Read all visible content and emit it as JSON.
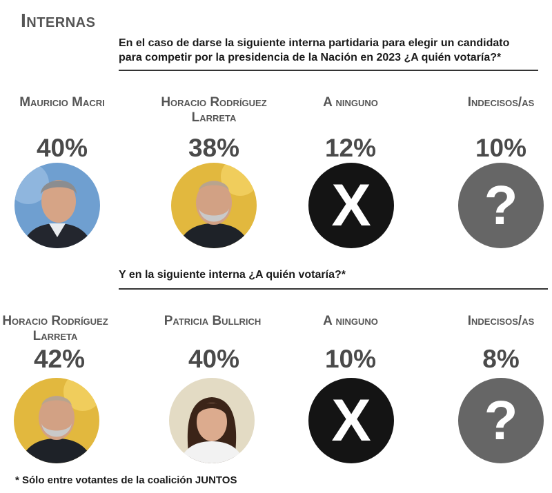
{
  "title": "Internas",
  "chart_data": [
    {
      "type": "table",
      "question": "En el caso de darse la siguiente interna partidaria para elegir un candidato para competir por la presidencia de la Nación en 2023 ¿A quién votaría?*",
      "categories": [
        "Mauricio Macri",
        "Horacio Rodríguez Larreta",
        "A ninguno",
        "Indecisos/as"
      ],
      "values": [
        40,
        38,
        12,
        10
      ],
      "labels": [
        "40%",
        "38%",
        "12%",
        "10%"
      ],
      "icons": [
        "photo-macri",
        "photo-larreta",
        "x-icon",
        "question-icon"
      ]
    },
    {
      "type": "table",
      "question": "Y en la siguiente interna ¿A quién votaría?*",
      "categories": [
        "Horacio Rodríguez Larreta",
        "Patricia Bullrich",
        "A ninguno",
        "Indecisos/as"
      ],
      "values": [
        42,
        40,
        10,
        8
      ],
      "labels": [
        "42%",
        "40%",
        "10%",
        "8%"
      ],
      "icons": [
        "photo-larreta",
        "photo-bullrich",
        "x-icon",
        "question-icon"
      ]
    }
  ],
  "glyphs": {
    "x": "X",
    "question": "?"
  },
  "colors": {
    "x_circle": "#141414",
    "question_circle": "#666666",
    "heading": "#555555"
  },
  "footnote": "* Sólo entre votantes de la coalición JUNTOS"
}
